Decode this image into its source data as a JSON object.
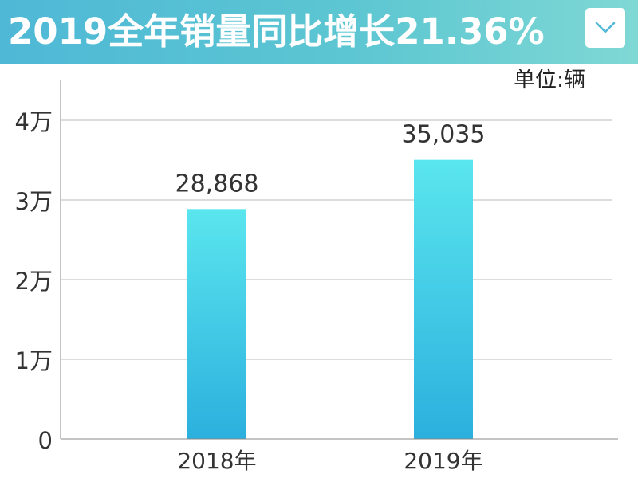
{
  "header": {
    "title": "2019全年销量同比增长21.36%",
    "dropdown_icon": "chevron-down-icon"
  },
  "unit_label": "单位:辆",
  "colors": {
    "header_start": "#4fb8d6",
    "header_end": "#7fd8d4",
    "bar_top": "#5ae6ee",
    "bar_bottom": "#2bb0de",
    "grid": "#b8b8b8",
    "axis": "#888888"
  },
  "chart_data": {
    "type": "bar",
    "categories": [
      "2018年",
      "2019年"
    ],
    "values": [
      28868,
      35035
    ],
    "value_labels": [
      "28,868",
      "35,035"
    ],
    "yticks": [
      0,
      10000,
      20000,
      30000,
      40000
    ],
    "ytick_labels": [
      "0",
      "1万",
      "2万",
      "3万",
      "4万"
    ],
    "ylim": [
      0,
      45000
    ],
    "grid": true,
    "legend": "none"
  }
}
